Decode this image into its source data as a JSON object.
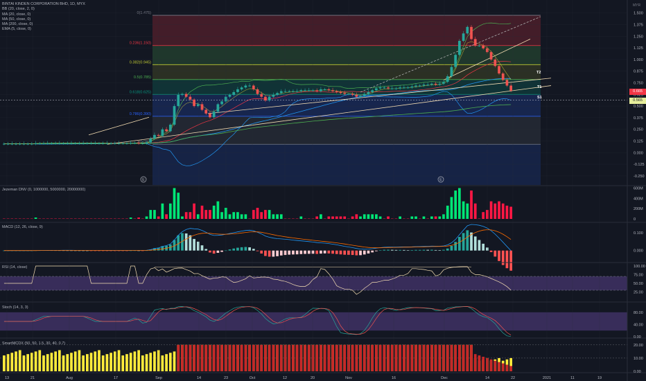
{
  "chart_data": {
    "type": "candlestick",
    "title": "BINTAI KINDEN CORPORATION BHD, 1D, MYX",
    "currency": "MYR",
    "studies": [
      "BB (20, close, 2, 0)",
      "MA (20, close, 0)",
      "MA (50, close, 0)",
      "MA (200, close, 0)",
      "EMA (5, close, 0)"
    ],
    "y_ticks": [
      "1.500",
      "1.375",
      "1.250",
      "1.125",
      "1.000",
      "0.875",
      "0.750",
      "0.625",
      "0.500",
      "0.375",
      "0.250",
      "0.125",
      "0.000",
      "-0.125",
      "-0.250"
    ],
    "ylim": [
      -0.31,
      1.52
    ],
    "x_ticks": [
      "13",
      "21",
      "Aug",
      "17",
      "Sep",
      "14",
      "23",
      "Oct",
      "12",
      "20",
      "Nov",
      "16",
      "Dec",
      "14",
      "22",
      "2021",
      "11",
      "19"
    ],
    "fib_levels": [
      {
        "label": "0(1.475)",
        "value": 1.475,
        "color": "#787b86"
      },
      {
        "label": "0.236(1.150)",
        "value": 1.15,
        "color": "#f23645"
      },
      {
        "label": "0.382(0.945)",
        "value": 0.945,
        "color": "#c0ca33"
      },
      {
        "label": "0.5(0.785)",
        "value": 0.785,
        "color": "#4caf50"
      },
      {
        "label": "0.618(0.625)",
        "value": 0.625,
        "color": "#089981"
      },
      {
        "label": "0.786(0.390)",
        "value": 0.39,
        "color": "#2962ff"
      },
      {
        "label": "1(0.090)",
        "value": 0.09,
        "color": "#787b86"
      }
    ],
    "annotations": [
      "T2",
      "T1",
      "S1",
      "E",
      "E"
    ],
    "last_price": "0.665",
    "support_price": "0.565",
    "close": [
      0.095,
      0.095,
      0.095,
      0.095,
      0.095,
      0.095,
      0.095,
      0.095,
      0.1,
      0.1,
      0.1,
      0.1,
      0.1,
      0.1,
      0.1,
      0.1,
      0.1,
      0.1,
      0.1,
      0.1,
      0.1,
      0.1,
      0.1,
      0.1,
      0.1,
      0.1,
      0.1,
      0.1,
      0.1,
      0.1,
      0.1,
      0.1,
      0.105,
      0.105,
      0.1,
      0.1,
      0.11,
      0.15,
      0.19,
      0.18,
      0.25,
      0.23,
      0.3,
      0.5,
      0.62,
      0.63,
      0.6,
      0.57,
      0.5,
      0.52,
      0.46,
      0.42,
      0.38,
      0.44,
      0.52,
      0.55,
      0.6,
      0.62,
      0.65,
      0.68,
      0.7,
      0.72,
      0.72,
      0.68,
      0.63,
      0.6,
      0.56,
      0.6,
      0.62,
      0.64,
      0.66,
      0.66,
      0.66,
      0.66,
      0.66,
      0.67,
      0.67,
      0.67,
      0.67,
      0.66,
      0.68,
      0.68,
      0.67,
      0.66,
      0.65,
      0.64,
      0.63,
      0.63,
      0.62,
      0.6,
      0.61,
      0.63,
      0.65,
      0.67,
      0.69,
      0.7,
      0.7,
      0.69,
      0.69,
      0.69,
      0.7,
      0.7,
      0.7,
      0.71,
      0.72,
      0.72,
      0.73,
      0.73,
      0.74,
      0.73,
      0.74,
      0.76,
      0.82,
      0.92,
      1.05,
      1.2,
      1.28,
      1.35,
      1.22,
      1.15,
      1.15,
      1.12,
      1.08,
      1.0,
      0.93,
      0.85,
      0.78,
      0.72,
      0.665
    ],
    "volume_panel": {
      "title": "Jezeman DNV (0, 1000000, 5000000, 20000000)",
      "ticks": [
        "600M",
        "400M",
        "200M",
        "0"
      ]
    },
    "macd_panel": {
      "title": "MACD (12, 26, close, 9)",
      "ticks": [
        "0.100",
        "0.000"
      ]
    },
    "rsi_panel": {
      "title": "RSI (14, close)",
      "ticks": [
        "100.00",
        "75.00",
        "50.00",
        "25.00"
      ]
    },
    "stoch_panel": {
      "title": "Stoch (14, 3, 3)",
      "ticks": [
        "80.00",
        "40.00",
        "0.00"
      ]
    },
    "smi_panel": {
      "title": "SmartMCDX (50, 50, 1.5, 30, 40, 0.7)",
      "ticks": [
        "20.00",
        "10.00",
        "0.00"
      ]
    }
  }
}
